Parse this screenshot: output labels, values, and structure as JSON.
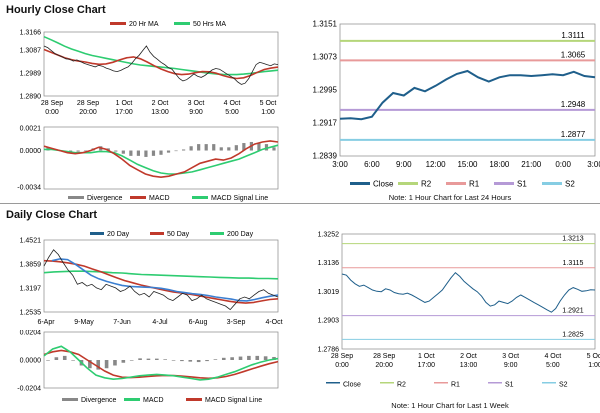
{
  "sections": {
    "hourly_title": "Hourly Close Chart",
    "daily_title": "Daily Close Chart"
  },
  "colors": {
    "close": "#1f5f8b",
    "ma20": "#c0392b",
    "ma50": "#2ecc71",
    "r2": "#b5d67a",
    "r1": "#e89a9a",
    "s1": "#b59ad6",
    "s2": "#86cde3",
    "divergence": "#888888",
    "macd": "#c0392b",
    "signal": "#2ecc71"
  },
  "chart_data": [
    {
      "id": "hourly_price",
      "type": "line",
      "ylim": [
        1.289,
        1.3165
      ],
      "y_ticks": [
        "1.3166",
        "1.3087",
        "1.2989",
        "1.2890"
      ],
      "x_ticks": [
        [
          "28 Sep",
          "0:00"
        ],
        [
          "28 Sep",
          "20:00"
        ],
        [
          "1 Oct",
          "17:00"
        ],
        [
          "2 Oct",
          "13:00"
        ],
        [
          "3 Oct",
          "9:00"
        ],
        [
          "4 Oct",
          "5:00"
        ],
        [
          "5 Oct",
          "1:00"
        ]
      ],
      "legend": [
        {
          "name": "20 Hr MA",
          "color": "#c0392b"
        },
        {
          "name": "50 Hrs MA",
          "color": "#2ecc71"
        }
      ],
      "series": [
        {
          "name": "Close",
          "values": [
            1.3105,
            1.3098,
            1.3085,
            1.3072,
            1.3065,
            1.3058,
            1.305,
            1.3048,
            1.304,
            1.3045,
            1.3038,
            1.303,
            1.3025,
            1.302,
            1.3015,
            1.3022,
            1.3018,
            1.301,
            1.3005,
            1.2998,
            1.2995,
            1.3,
            1.3008,
            1.3015,
            1.303,
            1.305,
            1.3065,
            1.3085,
            1.3105,
            1.3078,
            1.306,
            1.3048,
            1.3035,
            1.3025,
            1.3012,
            1.3005,
            1.2985,
            1.2965,
            1.2955,
            1.296,
            1.2972,
            1.2985,
            1.2975,
            1.297,
            1.2978,
            1.299,
            1.3002,
            1.3008,
            1.3005,
            1.2995,
            1.2985,
            1.2975,
            1.2965,
            1.295,
            1.294,
            1.2945,
            1.2965,
            1.2995,
            1.3025,
            1.3035,
            1.303,
            1.3025,
            1.302,
            1.3028,
            1.3025
          ]
        },
        {
          "name": "20 Hr MA",
          "values": [
            1.309,
            1.3078,
            1.3066,
            1.3054,
            1.3046,
            1.304,
            1.3036,
            1.303,
            1.3026,
            1.3028,
            1.3035,
            1.3045,
            1.3054,
            1.3058,
            1.305,
            1.3036,
            1.302,
            1.3006,
            1.2995,
            1.2986,
            1.2982,
            1.2984,
            1.299,
            1.2995,
            1.2994,
            1.2988,
            1.2978,
            1.297,
            1.2965,
            1.2968,
            1.2978,
            1.2992,
            1.3004,
            1.301,
            1.3014
          ]
        },
        {
          "name": "50 Hrs MA",
          "values": [
            1.3145,
            1.3132,
            1.3118,
            1.3104,
            1.3092,
            1.3082,
            1.3072,
            1.3064,
            1.3058,
            1.3052,
            1.3046,
            1.304,
            1.3034,
            1.3028,
            1.3023,
            1.302,
            1.3017,
            1.3014,
            1.3011,
            1.3008,
            1.3004,
            1.3,
            1.2996,
            1.2992,
            1.2988,
            1.2985,
            1.2983,
            1.2982,
            1.2982,
            1.2984,
            1.2987,
            1.2991,
            1.2995,
            1.2998,
            1.3001
          ]
        }
      ]
    },
    {
      "id": "hourly_macd",
      "type": "line",
      "ylim": [
        -0.0036,
        0.0022
      ],
      "y_ticks": [
        "0.0021",
        "0.0000",
        "-0.0034"
      ],
      "legend": [
        {
          "name": "Divergence",
          "color": "#888888"
        },
        {
          "name": "MACD",
          "color": "#c0392b"
        },
        {
          "name": "MACD Signal Line",
          "color": "#2ecc71"
        }
      ],
      "series": [
        {
          "name": "MACD",
          "values": [
            0.0004,
            0.0002,
            0.0,
            -0.0002,
            -0.0003,
            -0.0002,
            0.0,
            0.0003,
            0.0001,
            -0.0003,
            -0.0008,
            -0.0014,
            -0.0018,
            -0.0022,
            -0.0024,
            -0.0025,
            -0.0024,
            -0.0022,
            -0.002,
            -0.0016,
            -0.0012,
            -0.001,
            -0.0008,
            -0.0009,
            -0.0007,
            -0.0003,
            0.0002,
            0.0006,
            0.0008,
            0.0009,
            0.0008
          ]
        },
        {
          "name": "MACD Signal Line",
          "values": [
            0.0001,
            0.0001,
            0.0,
            -0.0001,
            -0.0002,
            -0.0002,
            -0.0002,
            -0.0001,
            -0.0001,
            -0.0002,
            -0.0005,
            -0.0009,
            -0.0013,
            -0.0016,
            -0.0019,
            -0.0021,
            -0.0022,
            -0.0022,
            -0.0021,
            -0.002,
            -0.0018,
            -0.0016,
            -0.0014,
            -0.0012,
            -0.001,
            -0.0008,
            -0.0005,
            -0.0002,
            0.0001,
            0.0003,
            0.0005
          ]
        },
        {
          "name": "Divergence",
          "values": [
            0.0003,
            0.0001,
            0.0,
            -0.0001,
            -0.0001,
            0.0,
            0.0002,
            0.0004,
            0.0002,
            -0.0001,
            -0.0003,
            -0.0005,
            -0.0005,
            -0.0006,
            -0.0005,
            -0.0004,
            -0.0002,
            0.0,
            0.0001,
            0.0004,
            0.0006,
            0.0006,
            0.0006,
            0.0003,
            0.0003,
            0.0005,
            0.0007,
            0.0008,
            0.0007,
            0.0006,
            0.0003
          ]
        }
      ]
    },
    {
      "id": "hourly_24h",
      "type": "line",
      "ylim": [
        1.2839,
        1.3151
      ],
      "y_ticks": [
        "1.3151",
        "1.3073",
        "1.2995",
        "1.2917",
        "1.2839"
      ],
      "x_ticks": [
        "3:00",
        "6:00",
        "9:00",
        "12:00",
        "15:00",
        "18:00",
        "21:00",
        "0:00",
        "3:00"
      ],
      "levels": [
        {
          "name": "R2",
          "value": 1.3111,
          "label": "1.3111",
          "color": "#b5d67a"
        },
        {
          "name": "R1",
          "value": 1.3065,
          "label": "1.3065",
          "color": "#e89a9a"
        },
        {
          "name": "S1",
          "value": 1.2948,
          "label": "1.2948",
          "color": "#b59ad6"
        },
        {
          "name": "S2",
          "value": 1.2877,
          "label": "1.2877",
          "color": "#86cde3"
        }
      ],
      "series": [
        {
          "name": "Close",
          "values": [
            1.2927,
            1.2928,
            1.2926,
            1.2932,
            1.2965,
            1.2988,
            1.2982,
            1.3,
            1.2992,
            1.3005,
            1.302,
            1.3033,
            1.304,
            1.3025,
            1.3015,
            1.3025,
            1.303,
            1.303,
            1.3028,
            1.303,
            1.3032,
            1.303,
            1.3038,
            1.3028,
            1.3025
          ]
        }
      ],
      "legend": [
        "Close",
        "R2",
        "R1",
        "S1",
        "S2"
      ],
      "note": "Note: 1 Hour Chart for Last 24 Hours"
    },
    {
      "id": "daily_price",
      "type": "line",
      "ylim": [
        1.2535,
        1.4521
      ],
      "y_ticks": [
        "1.4521",
        "1.3859",
        "1.3197",
        "1.2535"
      ],
      "x_ticks": [
        "6-Apr",
        "9-May",
        "7-Jun",
        "4-Jul",
        "6-Aug",
        "3-Sep",
        "4-Oct"
      ],
      "legend": [
        {
          "name": "20 Day",
          "color": "#1f5f8b"
        },
        {
          "name": "50 Day",
          "color": "#c0392b"
        },
        {
          "name": "200 Day",
          "color": "#2ecc71"
        }
      ],
      "series": [
        {
          "name": "Close",
          "values": [
            1.38,
            1.405,
            1.425,
            1.412,
            1.39,
            1.37,
            1.355,
            1.33,
            1.335,
            1.325,
            1.33,
            1.32,
            1.315,
            1.33,
            1.325,
            1.32,
            1.31,
            1.315,
            1.325,
            1.31,
            1.3,
            1.305,
            1.295,
            1.31,
            1.305,
            1.3,
            1.29,
            1.285,
            1.295,
            1.305,
            1.3,
            1.285,
            1.29,
            1.3,
            1.29,
            1.285,
            1.28,
            1.275,
            1.27,
            1.26,
            1.275,
            1.29,
            1.295,
            1.29,
            1.3,
            1.31,
            1.315,
            1.305,
            1.3,
            1.295
          ]
        },
        {
          "name": "20 Day",
          "values": [
            1.395,
            1.4,
            1.398,
            1.385,
            1.37,
            1.355,
            1.345,
            1.338,
            1.332,
            1.327,
            1.324,
            1.323,
            1.322,
            1.321,
            1.319,
            1.315,
            1.31,
            1.307,
            1.304,
            1.302,
            1.299,
            1.295,
            1.292,
            1.289,
            1.285,
            1.284,
            1.288,
            1.293,
            1.297,
            1.3
          ]
        },
        {
          "name": "50 Day",
          "values": [
            1.395,
            1.394,
            1.392,
            1.389,
            1.385,
            1.38,
            1.372,
            1.365,
            1.356,
            1.348,
            1.34,
            1.334,
            1.328,
            1.323,
            1.318,
            1.313,
            1.309,
            1.306,
            1.303,
            1.299,
            1.295,
            1.291,
            1.287,
            1.283,
            1.28,
            1.278,
            1.28,
            1.284,
            1.288,
            1.29
          ]
        },
        {
          "name": "200 Day",
          "values": [
            1.362,
            1.364,
            1.365,
            1.366,
            1.366,
            1.365,
            1.364,
            1.362,
            1.361,
            1.359,
            1.357,
            1.356,
            1.355,
            1.354,
            1.353,
            1.352,
            1.351,
            1.35,
            1.349,
            1.348,
            1.347,
            1.347,
            1.346,
            1.346,
            1.345
          ]
        }
      ]
    },
    {
      "id": "daily_macd",
      "type": "line",
      "ylim": [
        -0.0204,
        0.0204
      ],
      "y_ticks": [
        "0.0204",
        "0.0000",
        "-0.0204"
      ],
      "legend": [
        {
          "name": "Divergence",
          "color": "#888888"
        },
        {
          "name": "MACD",
          "color": "#2ecc71"
        },
        {
          "name": "MACD Signal Line",
          "color": "#c0392b"
        }
      ],
      "series": [
        {
          "name": "MACD",
          "values": [
            0.003,
            0.008,
            0.01,
            0.006,
            0.0,
            -0.006,
            -0.011,
            -0.013,
            -0.014,
            -0.0135,
            -0.0125,
            -0.0115,
            -0.011,
            -0.0105,
            -0.011,
            -0.0115,
            -0.0125,
            -0.0135,
            -0.0145,
            -0.014,
            -0.0125,
            -0.0105,
            -0.0085,
            -0.006,
            -0.0035,
            -0.0015,
            0.0,
            0.001
          ]
        },
        {
          "name": "MACD Signal Line",
          "values": [
            0.004,
            0.006,
            0.007,
            0.006,
            0.004,
            0.0,
            -0.004,
            -0.008,
            -0.011,
            -0.0125,
            -0.0128,
            -0.0125,
            -0.012,
            -0.0115,
            -0.0113,
            -0.0114,
            -0.0118,
            -0.0123,
            -0.013,
            -0.0133,
            -0.013,
            -0.012,
            -0.0105,
            -0.0085,
            -0.0065,
            -0.0045,
            -0.0027,
            -0.0012
          ]
        },
        {
          "name": "Divergence",
          "values": [
            0.0,
            0.002,
            0.003,
            0.0,
            -0.004,
            -0.006,
            -0.007,
            -0.006,
            -0.004,
            -0.002,
            0.0,
            0.0012,
            0.001,
            0.001,
            0.0005,
            -0.0003,
            -0.0008,
            -0.0012,
            -0.0015,
            -0.0008,
            0.0005,
            0.0016,
            0.002,
            0.0025,
            0.003,
            0.003,
            0.0027,
            0.0022
          ]
        }
      ]
    },
    {
      "id": "weekly_close",
      "type": "line",
      "ylim": [
        1.2786,
        1.3252
      ],
      "y_ticks": [
        "1.3252",
        "1.3136",
        "1.3019",
        "1.2903",
        "1.2786"
      ],
      "x_ticks": [
        [
          "28 Sep",
          "0:00"
        ],
        [
          "28 Sep",
          "20:00"
        ],
        [
          "1 Oct",
          "17:00"
        ],
        [
          "2 Oct",
          "13:00"
        ],
        [
          "3 Oct",
          "9:00"
        ],
        [
          "4 Oct",
          "5:00"
        ],
        [
          "5 Oct",
          "1:00"
        ]
      ],
      "levels": [
        {
          "name": "R2",
          "value": 1.3213,
          "label": "1.3213",
          "color": "#b5d67a"
        },
        {
          "name": "R1",
          "value": 1.3115,
          "label": "1.3115",
          "color": "#e89a9a"
        },
        {
          "name": "S1",
          "value": 1.2921,
          "label": "1.2921",
          "color": "#b59ad6"
        },
        {
          "name": "S2",
          "value": 1.2825,
          "label": "1.2825",
          "color": "#86cde3"
        }
      ],
      "series": [
        {
          "name": "Close",
          "values": [
            1.309,
            1.3085,
            1.3065,
            1.305,
            1.304,
            1.3045,
            1.3035,
            1.3025,
            1.302,
            1.3018,
            1.303,
            1.3025,
            1.3015,
            1.301,
            1.3008,
            1.3012,
            1.3005,
            1.2995,
            1.2985,
            1.2975,
            1.298,
            1.2995,
            1.301,
            1.3025,
            1.305,
            1.3075,
            1.3095,
            1.308,
            1.306,
            1.3045,
            1.303,
            1.3018,
            1.3,
            1.2975,
            1.296,
            1.2965,
            1.298,
            1.2975,
            1.297,
            1.298,
            1.2995,
            1.3005,
            1.2995,
            1.2985,
            1.2975,
            1.2965,
            1.2955,
            1.2945,
            1.2935,
            1.295,
            1.298,
            1.3005,
            1.3025,
            1.3035,
            1.3028,
            1.302,
            1.3022,
            1.3026,
            1.3025
          ]
        }
      ],
      "legend": [
        "Close",
        "R2",
        "R1",
        "S1",
        "S2"
      ],
      "note": "Note: 1 Hour Chart for Last 1 Week"
    }
  ]
}
